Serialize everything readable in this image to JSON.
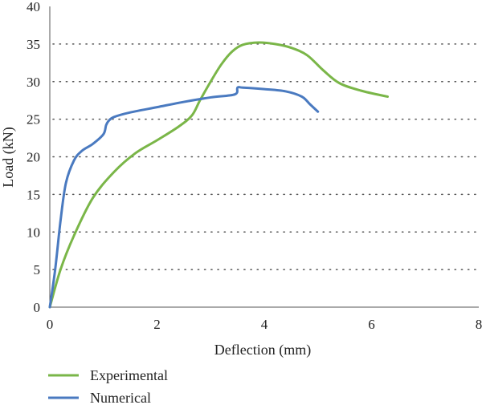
{
  "chart_data": {
    "type": "line",
    "title": "",
    "xlabel": "Deflection (mm)",
    "ylabel": "Load (kN)",
    "xlim": [
      0,
      8
    ],
    "ylim": [
      0,
      40
    ],
    "x_ticks": [
      "0",
      "2",
      "4",
      "6",
      "8"
    ],
    "y_ticks": [
      "0",
      "5",
      "10",
      "15",
      "20",
      "25",
      "30",
      "35",
      "40"
    ],
    "grid": "horizontal dotted",
    "legend_position": "bottom-left",
    "series": [
      {
        "name": "Experimental",
        "color": "#7ab648",
        "points": [
          [
            0,
            0
          ],
          [
            0.2,
            5
          ],
          [
            0.45,
            9.5
          ],
          [
            0.8,
            14.5
          ],
          [
            1.2,
            18
          ],
          [
            1.6,
            20.5
          ],
          [
            2.0,
            22.2
          ],
          [
            2.4,
            24
          ],
          [
            2.65,
            25.5
          ],
          [
            2.8,
            27.5
          ],
          [
            3.0,
            30
          ],
          [
            3.2,
            32.3
          ],
          [
            3.4,
            34
          ],
          [
            3.6,
            34.9
          ],
          [
            3.9,
            35.2
          ],
          [
            4.2,
            35
          ],
          [
            4.5,
            34.5
          ],
          [
            4.8,
            33.5
          ],
          [
            5.1,
            31.5
          ],
          [
            5.4,
            29.8
          ],
          [
            5.8,
            28.8
          ],
          [
            6.3,
            28
          ]
        ]
      },
      {
        "name": "Numerical",
        "color": "#4a7ac0",
        "points": [
          [
            0,
            0
          ],
          [
            0.1,
            5
          ],
          [
            0.2,
            11.5
          ],
          [
            0.3,
            16.5
          ],
          [
            0.45,
            19.5
          ],
          [
            0.6,
            20.8
          ],
          [
            0.8,
            21.7
          ],
          [
            1.0,
            23
          ],
          [
            1.05,
            24.2
          ],
          [
            1.1,
            24.8
          ],
          [
            1.2,
            25.3
          ],
          [
            1.5,
            25.9
          ],
          [
            2.0,
            26.6
          ],
          [
            2.5,
            27.3
          ],
          [
            3.0,
            27.9
          ],
          [
            3.45,
            28.3
          ],
          [
            3.5,
            29.2
          ],
          [
            3.6,
            29.2
          ],
          [
            4.0,
            29
          ],
          [
            4.4,
            28.7
          ],
          [
            4.7,
            28
          ],
          [
            4.85,
            27
          ],
          [
            5.0,
            26
          ]
        ]
      }
    ]
  }
}
